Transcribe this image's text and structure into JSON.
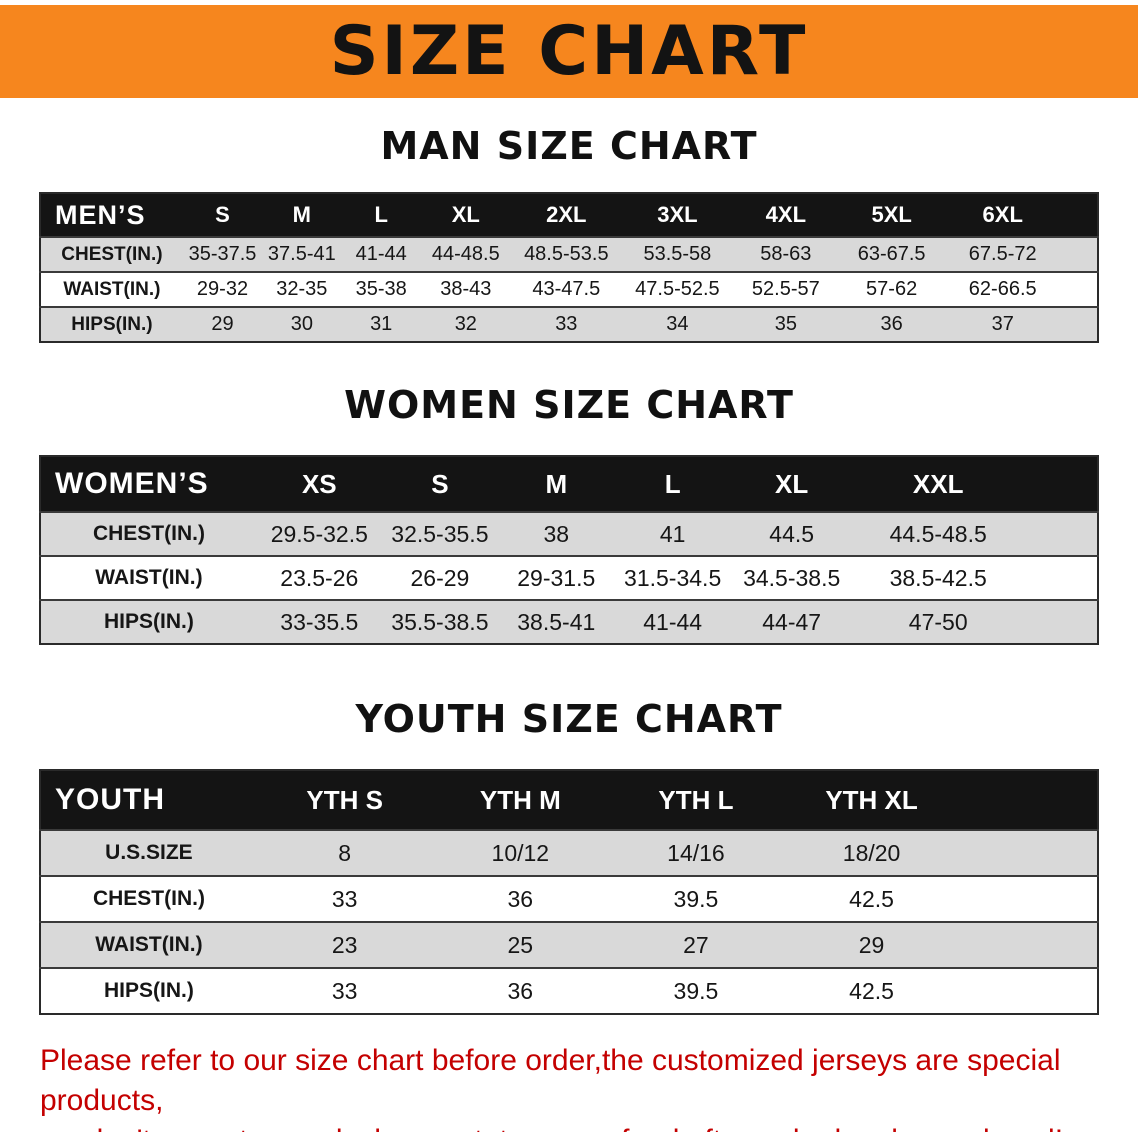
{
  "banner": {
    "title": "SIZE CHART",
    "bg": "#F6861E"
  },
  "sections": [
    {
      "id": "men",
      "title": "MAN SIZE CHART",
      "header": [
        "MEN’S",
        "S",
        "M",
        "L",
        "XL",
        "2XL",
        "3XL",
        "4XL",
        "5XL",
        "6XL"
      ],
      "rows": [
        [
          "CHEST(IN.)",
          "35-37.5",
          "37.5-41",
          "41-44",
          "44-48.5",
          "48.5-53.5",
          "53.5-58",
          "58-63",
          "63-67.5",
          "67.5-72"
        ],
        [
          "WAIST(IN.)",
          "29-32",
          "32-35",
          "35-38",
          "38-43",
          "43-47.5",
          "47.5-52.5",
          "52.5-57",
          "57-62",
          "62-66.5"
        ],
        [
          "HIPS(IN.)",
          "29",
          "30",
          "31",
          "32",
          "33",
          "34",
          "35",
          "36",
          "37"
        ]
      ],
      "shade_pattern": [
        true,
        false,
        true
      ]
    },
    {
      "id": "women",
      "title": "WOMEN SIZE CHART",
      "header": [
        "WOMEN’S",
        "XS",
        "S",
        "M",
        "L",
        "XL",
        "XXL"
      ],
      "rows": [
        [
          "CHEST(IN.)",
          "29.5-32.5",
          "32.5-35.5",
          "38",
          "41",
          "44.5",
          "44.5-48.5"
        ],
        [
          "WAIST(IN.)",
          "23.5-26",
          "26-29",
          "29-31.5",
          "31.5-34.5",
          "34.5-38.5",
          "38.5-42.5"
        ],
        [
          "HIPS(IN.)",
          "33-35.5",
          "35.5-38.5",
          "38.5-41",
          "41-44",
          "44-47",
          "47-50"
        ]
      ],
      "shade_pattern": [
        true,
        false,
        true
      ]
    },
    {
      "id": "youth",
      "title": "YOUTH SIZE CHART",
      "header": [
        "YOUTH",
        "YTH S",
        "YTH M",
        "YTH L",
        "YTH XL"
      ],
      "rows": [
        [
          "U.S.SIZE",
          "8",
          "10/12",
          "14/16",
          "18/20"
        ],
        [
          "CHEST(IN.)",
          "33",
          "36",
          "39.5",
          "42.5"
        ],
        [
          "WAIST(IN.)",
          "23",
          "25",
          "27",
          "29"
        ],
        [
          "HIPS(IN.)",
          "33",
          "36",
          "39.5",
          "42.5"
        ]
      ],
      "shade_pattern": [
        true,
        false,
        true,
        false
      ]
    }
  ],
  "notice": {
    "color": "#c40000",
    "line1": "Please refer to our size chart before order,the customized jerseys are special products,",
    "line2": "we don't accept cancel, change, teturn or refund after order has been placed!"
  }
}
